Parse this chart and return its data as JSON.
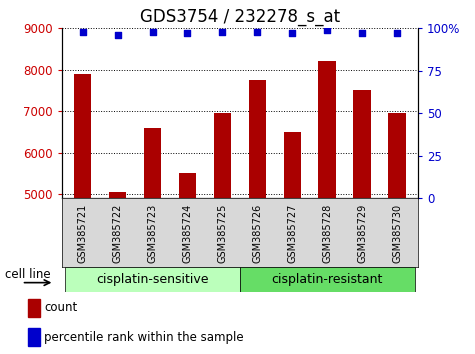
{
  "title": "GDS3754 / 232278_s_at",
  "samples": [
    "GSM385721",
    "GSM385722",
    "GSM385723",
    "GSM385724",
    "GSM385725",
    "GSM385726",
    "GSM385727",
    "GSM385728",
    "GSM385729",
    "GSM385730"
  ],
  "counts": [
    7900,
    5050,
    6600,
    5500,
    6950,
    7750,
    6500,
    8200,
    7500,
    6950
  ],
  "percentile_ranks": [
    98,
    96,
    98,
    97,
    98,
    98,
    97,
    99,
    97,
    97
  ],
  "ylim_left": [
    4900,
    9000
  ],
  "ylim_right": [
    0,
    100
  ],
  "yticks_left": [
    5000,
    6000,
    7000,
    8000,
    9000
  ],
  "yticks_right": [
    0,
    25,
    50,
    75,
    100
  ],
  "bar_color": "#aa0000",
  "dot_color": "#0000cc",
  "bar_width": 0.5,
  "group1_label": "cisplatin-sensitive",
  "group2_label": "cisplatin-resistant",
  "group1_indices": [
    0,
    1,
    2,
    3,
    4
  ],
  "group2_indices": [
    5,
    6,
    7,
    8,
    9
  ],
  "group_bg1": "#bbffbb",
  "group_bg2": "#66dd66",
  "xlabel_left": "cell line",
  "legend_count_label": "count",
  "legend_pct_label": "percentile rank within the sample",
  "tick_label_color_left": "#cc0000",
  "tick_label_color_right": "#0000cc",
  "title_fontsize": 12,
  "tick_fontsize": 8.5,
  "sample_fontsize": 7,
  "group_fontsize": 9
}
